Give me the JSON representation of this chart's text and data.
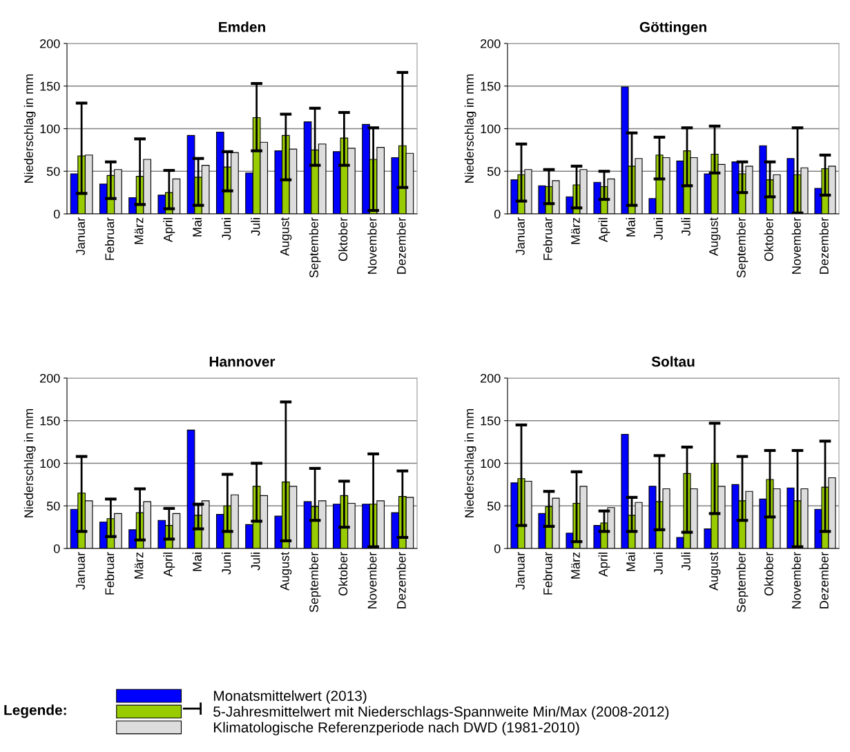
{
  "chart_data": [
    {
      "type": "bar",
      "title": "Emden",
      "ylabel": "Niederschlag in mm",
      "categories": [
        "Januar",
        "Februar",
        "März",
        "April",
        "Mai",
        "Juni",
        "Juli",
        "August",
        "September",
        "Oktober",
        "November",
        "Dezember"
      ],
      "ylim": [
        0,
        200
      ],
      "yticks": [
        0,
        50,
        100,
        150,
        200
      ],
      "grid": "y",
      "legend": "bottom",
      "legend_title": "Legende:",
      "series": [
        {
          "name": "Monatsmittelwert (2013)",
          "color": "#0000ff",
          "values": [
            47,
            35,
            19,
            22,
            92,
            96,
            48,
            74,
            108,
            73,
            105,
            66
          ]
        },
        {
          "name": "5-Jahresmittelwert mit Niederschlags-Spannweite Min/Max (2008-2012)",
          "color": "#99cc00",
          "values": [
            68,
            45,
            44,
            25,
            43,
            55,
            113,
            92,
            75,
            89,
            64,
            80
          ],
          "errors": [
            [
              24,
              130
            ],
            [
              18,
              61
            ],
            [
              11,
              88
            ],
            [
              6,
              51
            ],
            [
              10,
              65
            ],
            [
              27,
              73
            ],
            [
              74,
              153
            ],
            [
              40,
              117
            ],
            [
              57,
              124
            ],
            [
              57,
              119
            ],
            [
              4,
              101
            ],
            [
              31,
              166
            ]
          ]
        },
        {
          "name": "Klimatologische Referenzperiode nach DWD (1981-2010)",
          "color": "#dddddd",
          "values": [
            69,
            52,
            64,
            41,
            57,
            72,
            84,
            76,
            82,
            77,
            78,
            71
          ]
        }
      ]
    },
    {
      "type": "bar",
      "title": "Göttingen",
      "ylabel": "Niederschlag in mm",
      "categories": [
        "Januar",
        "Februar",
        "März",
        "April",
        "Mai",
        "Juni",
        "Juli",
        "August",
        "September",
        "Oktober",
        "November",
        "Dezember"
      ],
      "ylim": [
        0,
        200
      ],
      "yticks": [
        0,
        50,
        100,
        150,
        200
      ],
      "grid": "y",
      "series": [
        {
          "color": "#0000ff",
          "values": [
            40,
            33,
            20,
            37,
            149,
            18,
            62,
            47,
            61,
            80,
            65,
            30
          ]
        },
        {
          "color": "#99cc00",
          "values": [
            46,
            32,
            34,
            32,
            56,
            69,
            74,
            70,
            47,
            40,
            46,
            53
          ],
          "errors": [
            [
              15,
              82
            ],
            [
              12,
              52
            ],
            [
              7,
              56
            ],
            [
              17,
              50
            ],
            [
              10,
              95
            ],
            [
              41,
              90
            ],
            [
              33,
              101
            ],
            [
              48,
              103
            ],
            [
              25,
              61
            ],
            [
              20,
              61
            ],
            [
              1,
              101
            ],
            [
              22,
              69
            ]
          ]
        },
        {
          "color": "#dddddd",
          "values": [
            52,
            39,
            52,
            41,
            65,
            66,
            66,
            58,
            56,
            46,
            54,
            56
          ]
        }
      ]
    },
    {
      "type": "bar",
      "title": "Hannover",
      "ylabel": "Niederschlag in mm",
      "categories": [
        "Januar",
        "Februar",
        "März",
        "April",
        "Mai",
        "Juni",
        "Juli",
        "August",
        "September",
        "Oktober",
        "November",
        "Dezember"
      ],
      "ylim": [
        0,
        200
      ],
      "yticks": [
        0,
        50,
        100,
        150,
        200
      ],
      "grid": "y",
      "series": [
        {
          "color": "#0000ff",
          "values": [
            46,
            31,
            22,
            33,
            139,
            40,
            28,
            38,
            55,
            52,
            52,
            42
          ]
        },
        {
          "color": "#99cc00",
          "values": [
            65,
            35,
            42,
            27,
            39,
            50,
            73,
            78,
            49,
            62,
            52,
            61
          ],
          "errors": [
            [
              20,
              108
            ],
            [
              14,
              58
            ],
            [
              10,
              70
            ],
            [
              11,
              47
            ],
            [
              23,
              52
            ],
            [
              20,
              87
            ],
            [
              32,
              100
            ],
            [
              9,
              172
            ],
            [
              33,
              94
            ],
            [
              25,
              79
            ],
            [
              2,
              111
            ],
            [
              13,
              91
            ]
          ]
        },
        {
          "color": "#dddddd",
          "values": [
            56,
            41,
            55,
            41,
            56,
            63,
            62,
            73,
            56,
            53,
            56,
            60
          ]
        }
      ]
    },
    {
      "type": "bar",
      "title": "Soltau",
      "ylabel": "Niederschlag in mm",
      "categories": [
        "Januar",
        "Februar",
        "März",
        "April",
        "Mai",
        "Juni",
        "Juli",
        "August",
        "September",
        "Oktober",
        "November",
        "Dezember"
      ],
      "ylim": [
        0,
        200
      ],
      "yticks": [
        0,
        50,
        100,
        150,
        200
      ],
      "grid": "y",
      "series": [
        {
          "color": "#0000ff",
          "values": [
            77,
            41,
            18,
            27,
            134,
            73,
            13,
            23,
            75,
            58,
            71,
            46
          ]
        },
        {
          "color": "#99cc00",
          "values": [
            82,
            49,
            53,
            30,
            39,
            55,
            88,
            100,
            56,
            81,
            56,
            72
          ],
          "errors": [
            [
              27,
              145
            ],
            [
              26,
              67
            ],
            [
              8,
              90
            ],
            [
              20,
              44
            ],
            [
              20,
              60
            ],
            [
              22,
              109
            ],
            [
              19,
              119
            ],
            [
              41,
              147
            ],
            [
              33,
              108
            ],
            [
              37,
              115
            ],
            [
              2,
              115
            ],
            [
              20,
              126
            ]
          ]
        },
        {
          "color": "#dddddd",
          "values": [
            79,
            59,
            73,
            48,
            54,
            70,
            70,
            73,
            67,
            70,
            70,
            83
          ]
        }
      ]
    }
  ]
}
